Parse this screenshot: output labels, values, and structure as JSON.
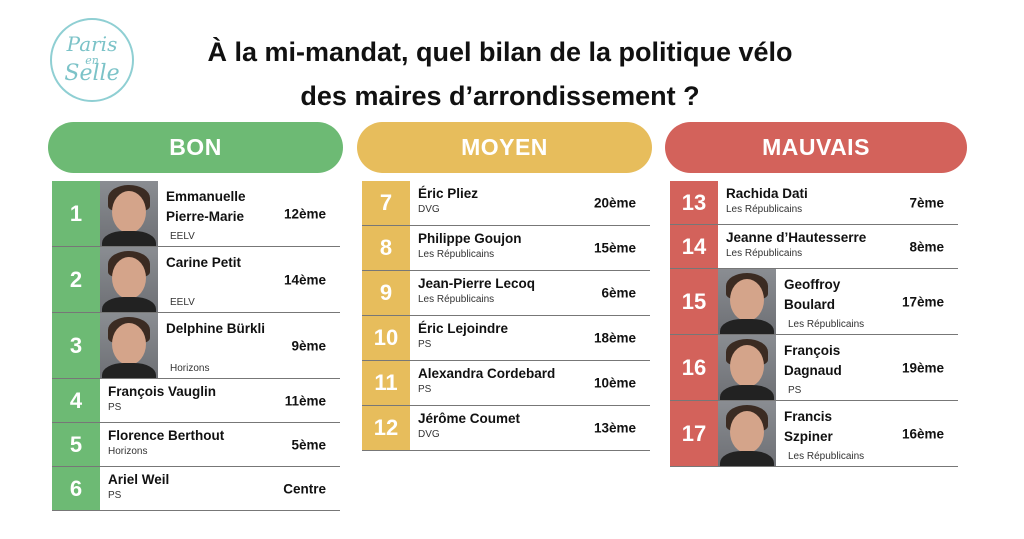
{
  "logo": {
    "line1": "Paris",
    "line2": "en",
    "line3": "Selle"
  },
  "title": {
    "line1": "À la mi-mandat, quel bilan de la politique vélo",
    "line2": "des maires d’arrondissement ?"
  },
  "colors": {
    "bon": "#6dba74",
    "moyen": "#e7bd5c",
    "mauvais": "#d3625b"
  },
  "columns": [
    {
      "key": "bon",
      "label": "BON",
      "rows": [
        {
          "rank": "1",
          "name": "Emmanuelle Pierre-Marie",
          "party": "EELV",
          "arr": "12ème",
          "photo": true
        },
        {
          "rank": "2",
          "name": "Carine Petit",
          "party": "EELV",
          "arr": "14ème",
          "photo": true
        },
        {
          "rank": "3",
          "name": "Delphine Bürkli",
          "party": "Horizons",
          "arr": "9ème",
          "photo": true
        },
        {
          "rank": "4",
          "name": "François Vauglin",
          "party": "PS",
          "arr": "11ème",
          "photo": false
        },
        {
          "rank": "5",
          "name": "Florence Berthout",
          "party": "Horizons",
          "arr": "5ème",
          "photo": false
        },
        {
          "rank": "6",
          "name": "Ariel Weil",
          "party": "PS",
          "arr": "Centre",
          "photo": false
        }
      ]
    },
    {
      "key": "moyen",
      "label": "MOYEN",
      "rows": [
        {
          "rank": "7",
          "name": "Éric Pliez",
          "party": "DVG",
          "arr": "20ème",
          "photo": false
        },
        {
          "rank": "8",
          "name": "Philippe Goujon",
          "party": "Les Républicains",
          "arr": "15ème",
          "photo": false
        },
        {
          "rank": "9",
          "name": "Jean-Pierre Lecoq",
          "party": "Les Républicains",
          "arr": "6ème",
          "photo": false
        },
        {
          "rank": "10",
          "name": "Éric Lejoindre",
          "party": "PS",
          "arr": "18ème",
          "photo": false
        },
        {
          "rank": "11",
          "name": "Alexandra Cordebard",
          "party": "PS",
          "arr": "10ème",
          "photo": false
        },
        {
          "rank": "12",
          "name": "Jérôme Coumet",
          "party": "DVG",
          "arr": "13ème",
          "photo": false
        }
      ]
    },
    {
      "key": "mauvais",
      "label": "MAUVAIS",
      "rows": [
        {
          "rank": "13",
          "name": "Rachida Dati",
          "party": "Les Républicains",
          "arr": "7ème",
          "photo": false
        },
        {
          "rank": "14",
          "name": "Jeanne d’Hautesserre",
          "party": "Les Républicains",
          "arr": "8ème",
          "photo": false
        },
        {
          "rank": "15",
          "name": "Geoffroy Boulard",
          "party": "Les Républicains",
          "arr": "17ème",
          "photo": true
        },
        {
          "rank": "16",
          "name": "François Dagnaud",
          "party": "PS",
          "arr": "19ème",
          "photo": true
        },
        {
          "rank": "17",
          "name": "Francis Szpiner",
          "party": "Les Républicains",
          "arr": "16ème",
          "photo": true
        }
      ]
    }
  ]
}
